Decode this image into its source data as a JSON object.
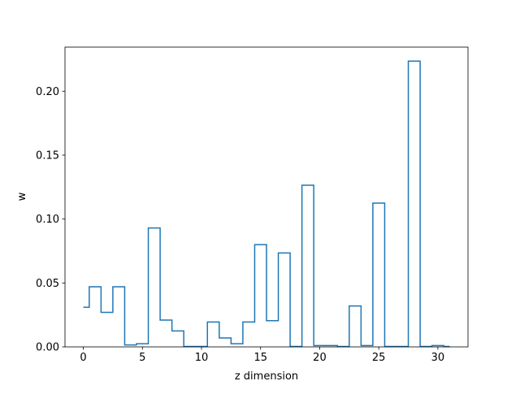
{
  "chart_data": {
    "type": "line",
    "drawstyle": "steps-mid",
    "title": "",
    "xlabel": "z dimension",
    "ylabel": "w",
    "xlim": [
      -1.55,
      32.55
    ],
    "ylim": [
      0,
      0.2345
    ],
    "xticks": [
      0,
      5,
      10,
      15,
      20,
      25,
      30
    ],
    "xtick_labels": [
      "0",
      "5",
      "10",
      "15",
      "20",
      "25",
      "30"
    ],
    "yticks": [
      0,
      0.05,
      0.1,
      0.15,
      0.2
    ],
    "ytick_labels": [
      "0.00",
      "0.05",
      "0.10",
      "0.15",
      "0.20"
    ],
    "grid": false,
    "line_color": "#1f77b4",
    "x": [
      0,
      1,
      2,
      3,
      4,
      5,
      6,
      7,
      8,
      9,
      10,
      11,
      12,
      13,
      14,
      15,
      16,
      17,
      18,
      19,
      20,
      21,
      22,
      23,
      24,
      25,
      26,
      27,
      28,
      29,
      30,
      31
    ],
    "values": [
      0.031,
      0.047,
      0.027,
      0.047,
      0.0015,
      0.0025,
      0.093,
      0.021,
      0.0125,
      0.0003,
      0.0003,
      0.0195,
      0.007,
      0.0025,
      0.0195,
      0.08,
      0.0205,
      0.0735,
      0.0003,
      0.1265,
      0.001,
      0.001,
      0.0003,
      0.032,
      0.001,
      0.1125,
      0.0003,
      0.0003,
      0.2235,
      0.0003,
      0.001,
      0.0003
    ]
  }
}
